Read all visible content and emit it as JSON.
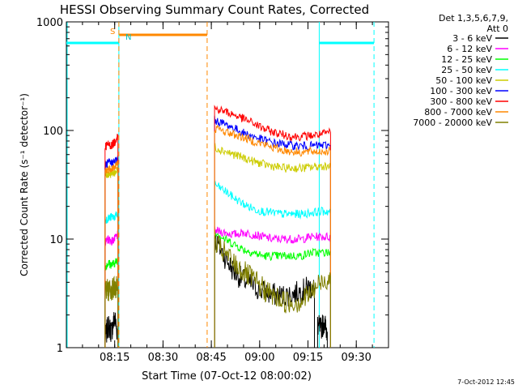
{
  "chart_data": {
    "type": "line",
    "title": "HESSI Observing Summary Count Rates, Corrected",
    "xlabel": "Start Time (07-Oct-12 08:00:02)",
    "ylabel": "Corrected Count Rate (s⁻¹ detector⁻¹)",
    "yscale": "log",
    "ylim": [
      1,
      1000
    ],
    "xlim_minutes": [
      0,
      100
    ],
    "x_unit": "minutes after 08:00:02",
    "x_ticks": [
      {
        "label": "08:15",
        "t": 15
      },
      {
        "label": "08:30",
        "t": 30
      },
      {
        "label": "08:45",
        "t": 45
      },
      {
        "label": "09:00",
        "t": 60
      },
      {
        "label": "09:15",
        "t": 75
      },
      {
        "label": "09:30",
        "t": 90
      }
    ],
    "y_ticks": [
      {
        "label": "1",
        "v": 1
      },
      {
        "label": "10",
        "v": 10
      },
      {
        "label": "100",
        "v": 100
      },
      {
        "label": "1000",
        "v": 1000
      }
    ],
    "legend_header": [
      "Det 1,3,5,6,7,9,",
      "Att 0"
    ],
    "legend_placement": "right",
    "series": [
      {
        "name": "3 - 6 keV",
        "color": "#000000",
        "segments": [
          {
            "x": [
              12,
              13,
              14,
              15,
              16
            ],
            "y": [
              1.2,
              1.6,
              1.4,
              1.9,
              1.3
            ]
          },
          {
            "x": [
              46,
              49,
              52,
              55,
              58,
              61,
              64,
              67,
              70,
              73,
              75,
              77
            ],
            "y": [
              10,
              7,
              5,
              4.2,
              3.7,
              3.3,
              3.1,
              3.0,
              3.1,
              3.3,
              3.6,
              3.5
            ]
          },
          {
            "x": [
              78,
              79,
              80,
              81
            ],
            "y": [
              1.6,
              1.5,
              1.7,
              1.4
            ]
          }
        ]
      },
      {
        "name": "6 - 12 keV",
        "color": "#ff00ff",
        "segments": [
          {
            "x": [
              12,
              13,
              14,
              15,
              16
            ],
            "y": [
              9,
              10,
              9.5,
              10,
              11
            ]
          },
          {
            "x": [
              46,
              49,
              52,
              55,
              58,
              61,
              64,
              67,
              70,
              73,
              76,
              79,
              82
            ],
            "y": [
              12,
              11.5,
              11,
              11.5,
              11,
              10.5,
              10,
              10,
              10,
              10,
              10.5,
              10.5,
              10.5
            ]
          }
        ]
      },
      {
        "name": "12 - 25 keV",
        "color": "#00ff00",
        "segments": [
          {
            "x": [
              12,
              13,
              14,
              15,
              16
            ],
            "y": [
              5.5,
              6,
              5.8,
              6,
              6.5
            ]
          },
          {
            "x": [
              46,
              49,
              52,
              55,
              58,
              61,
              64,
              67,
              70,
              73,
              76,
              79,
              82
            ],
            "y": [
              12,
              10,
              9,
              8,
              7.5,
              7,
              7,
              7,
              7,
              7,
              7.5,
              7.5,
              7.5
            ]
          }
        ]
      },
      {
        "name": "25 - 50 keV",
        "color": "#00ffff",
        "segments": [
          {
            "x": [
              12,
              13,
              14,
              15,
              16
            ],
            "y": [
              15,
              15.5,
              16,
              16,
              17
            ]
          },
          {
            "x": [
              46,
              49,
              52,
              55,
              58,
              61,
              64,
              67,
              70,
              73,
              76,
              79,
              82
            ],
            "y": [
              32,
              28,
              24,
              21,
              19,
              18,
              17.5,
              17,
              17,
              17,
              17.5,
              18,
              18
            ]
          }
        ]
      },
      {
        "name": "50 - 100 keV",
        "color": "#cccc00",
        "segments": [
          {
            "x": [
              12,
              13,
              14,
              15,
              16
            ],
            "y": [
              38,
              40,
              40,
              41,
              43
            ]
          },
          {
            "x": [
              46,
              49,
              52,
              55,
              58,
              61,
              64,
              67,
              70,
              73,
              76,
              79,
              82
            ],
            "y": [
              70,
              65,
              60,
              56,
              52,
              49,
              47,
              45,
              45,
              45,
              46,
              47,
              47
            ]
          }
        ]
      },
      {
        "name": "100 - 300 keV",
        "color": "#0000ff",
        "segments": [
          {
            "x": [
              12,
              13,
              14,
              15,
              16
            ],
            "y": [
              48,
              50,
              50,
              52,
              55
            ]
          },
          {
            "x": [
              46,
              49,
              52,
              55,
              58,
              61,
              64,
              67,
              70,
              73,
              76,
              79,
              82
            ],
            "y": [
              125,
              115,
              105,
              95,
              88,
              82,
              77,
              75,
              73,
              72,
              72,
              73,
              73
            ]
          }
        ]
      },
      {
        "name": "300 - 800 keV",
        "color": "#ff0000",
        "segments": [
          {
            "x": [
              12,
              13,
              14,
              15,
              16
            ],
            "y": [
              72,
              74,
              73,
              78,
              92
            ]
          },
          {
            "x": [
              46,
              49,
              52,
              55,
              58,
              61,
              64,
              67,
              70,
              73,
              76,
              79,
              82
            ],
            "y": [
              160,
              150,
              140,
              128,
              117,
              105,
              97,
              92,
              88,
              88,
              90,
              92,
              96
            ]
          }
        ]
      },
      {
        "name": "800 - 7000 keV",
        "color": "#ff8800",
        "segments": [
          {
            "x": [
              12,
              13,
              14,
              15,
              16
            ],
            "y": [
              42,
              44,
              45,
              46,
              50
            ]
          },
          {
            "x": [
              46,
              49,
              52,
              55,
              58,
              61,
              64,
              67,
              70,
              73,
              76,
              79,
              82
            ],
            "y": [
              105,
              98,
              92,
              86,
              80,
              75,
              70,
              66,
              64,
              63,
              64,
              64,
              65
            ]
          }
        ]
      },
      {
        "name": "7000 - 20000 keV",
        "color": "#808000",
        "segments": [
          {
            "x": [
              12,
              13,
              14,
              15,
              16
            ],
            "y": [
              3.2,
              3.4,
              3.5,
              3.5,
              3.6
            ]
          },
          {
            "x": [
              46,
              49,
              52,
              55,
              58,
              61,
              64,
              67,
              70,
              73,
              76,
              79,
              82
            ],
            "y": [
              9,
              7.5,
              6,
              5,
              4.2,
              3.5,
              3.0,
              2.7,
              2.6,
              2.7,
              3.2,
              4.0,
              4.5
            ]
          }
        ]
      }
    ],
    "annotations": [
      {
        "label": "S",
        "color": "#ff8800"
      },
      {
        "label": "N",
        "color": "#00ffff"
      }
    ],
    "footer": "7-Oct-2012 12:45"
  }
}
